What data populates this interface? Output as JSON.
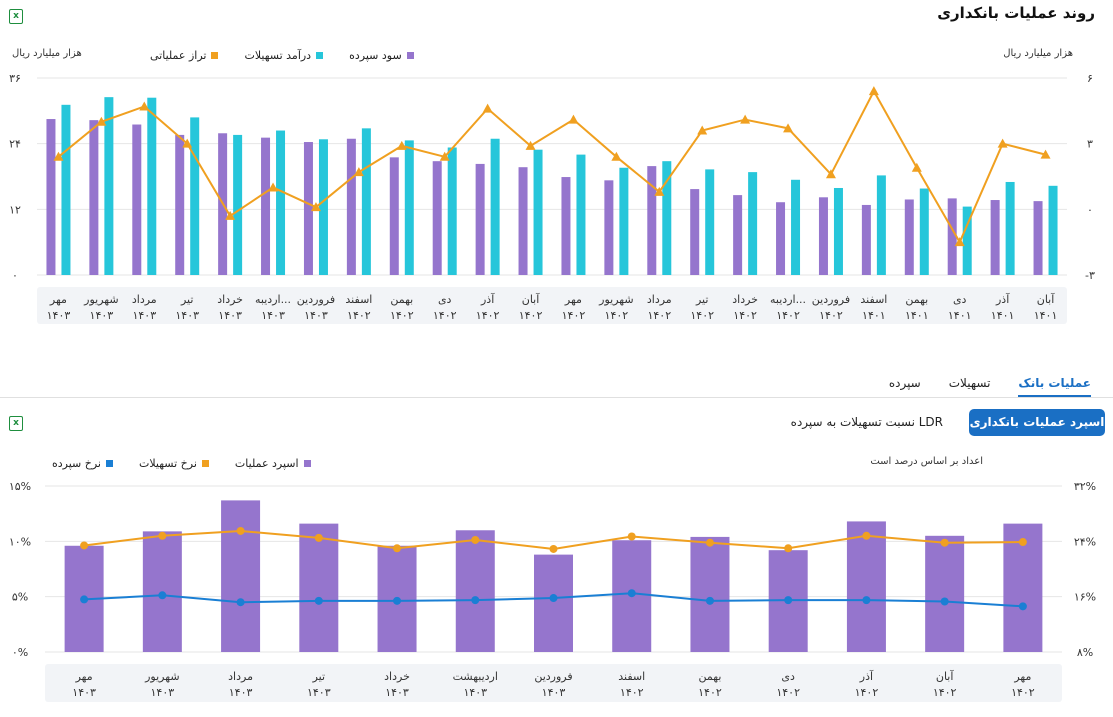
{
  "top": {
    "title": "روند عملیات بانکداری",
    "left_unit": "هزار میلیارد ریال",
    "right_unit": "هزار میلیارد ریال",
    "legend": [
      {
        "name": "سود سپرده",
        "color": "#9575cd"
      },
      {
        "name": "درآمد تسهیلات",
        "color": "#26c6da"
      },
      {
        "name": "تراز عملیاتی",
        "color": "#f0a020"
      }
    ]
  },
  "tabs": {
    "items": [
      "عملیات بانک",
      "تسهیلات",
      "سپرده"
    ],
    "active": 0
  },
  "bottom": {
    "spread_button": "اسپرد عملیات بانکداری",
    "ldr_label": "نسبت تسهیلات به سپرده LDR",
    "unit": "اعداد بر اساس درصد است",
    "legend": [
      {
        "name": "اسپرد عملیات",
        "color": "#9575cd"
      },
      {
        "name": "نرخ تسهیلات",
        "color": "#f0a020"
      },
      {
        "name": "نرخ سپرده",
        "color": "#1a7fd4"
      }
    ]
  },
  "chart_data": [
    {
      "type": "bar",
      "title": "روند عملیات بانکداری",
      "categories": [
        [
          "آبان",
          "۱۴۰۱"
        ],
        [
          "آذر",
          "۱۴۰۱"
        ],
        [
          "دی",
          "۱۴۰۱"
        ],
        [
          "بهمن",
          "۱۴۰۱"
        ],
        [
          "اسفند",
          "۱۴۰۱"
        ],
        [
          "فروردین",
          "۱۴۰۲"
        ],
        [
          "اردیبه...",
          "۱۴۰۲"
        ],
        [
          "خرداد",
          "۱۴۰۲"
        ],
        [
          "تیر",
          "۱۴۰۲"
        ],
        [
          "مرداد",
          "۱۴۰۲"
        ],
        [
          "شهریور",
          "۱۴۰۲"
        ],
        [
          "مهر",
          "۱۴۰۲"
        ],
        [
          "آبان",
          "۱۴۰۲"
        ],
        [
          "آذر",
          "۱۴۰۲"
        ],
        [
          "دی",
          "۱۴۰۲"
        ],
        [
          "بهمن",
          "۱۴۰۲"
        ],
        [
          "اسفند",
          "۱۴۰۲"
        ],
        [
          "فروردین",
          "۱۴۰۳"
        ],
        [
          "اردیبه...",
          "۱۴۰۳"
        ],
        [
          "خرداد",
          "۱۴۰۳"
        ],
        [
          "تیر",
          "۱۴۰۳"
        ],
        [
          "مرداد",
          "۱۴۰۳"
        ],
        [
          "شهریور",
          "۱۴۰۳"
        ],
        [
          "مهر",
          "۱۴۰۳"
        ]
      ],
      "left_axis": {
        "ylim": [
          0,
          36
        ],
        "ticks": [
          0,
          12,
          24,
          36
        ],
        "tick_labels": [
          "۰",
          "۱۲",
          "۲۴",
          "۳۶"
        ]
      },
      "right_axis": {
        "ylim": [
          -3,
          6
        ],
        "ticks": [
          -3,
          0,
          3,
          6
        ],
        "tick_labels": [
          "-۳",
          "۰",
          "۳",
          "۶"
        ]
      },
      "series": [
        {
          "name": "سود سپرده",
          "type": "bar",
          "axis": "left",
          "color": "#9575cd",
          "values": [
            13.5,
            13.7,
            14.0,
            13.8,
            12.8,
            14.2,
            13.3,
            14.6,
            15.7,
            19.9,
            17.3,
            17.9,
            19.7,
            20.3,
            20.8,
            21.5,
            24.9,
            24.3,
            25.1,
            25.9,
            25.6,
            27.5,
            28.3,
            28.5
          ]
        },
        {
          "name": "درآمد تسهیلات",
          "type": "bar",
          "axis": "left",
          "color": "#26c6da",
          "values": [
            16.3,
            17.0,
            12.5,
            15.8,
            18.2,
            15.9,
            17.4,
            18.8,
            19.3,
            20.8,
            19.6,
            22.0,
            22.9,
            24.9,
            23.3,
            24.6,
            26.8,
            24.8,
            26.4,
            25.6,
            28.8,
            32.4,
            32.5,
            31.1
          ]
        },
        {
          "name": "تراز عملیاتی",
          "type": "line",
          "axis": "right",
          "color": "#f0a020",
          "values": [
            2.5,
            3.0,
            -1.5,
            1.9,
            5.4,
            1.6,
            3.7,
            4.1,
            3.6,
            0.8,
            2.4,
            4.1,
            2.9,
            4.6,
            2.4,
            2.9,
            1.7,
            0.1,
            1.0,
            -0.3,
            3.0,
            4.7,
            4.0,
            2.4
          ]
        }
      ]
    },
    {
      "type": "bar",
      "title": "اسپرد عملیات بانکداری",
      "categories": [
        [
          "مهر",
          "۱۴۰۲"
        ],
        [
          "آبان",
          "۱۴۰۲"
        ],
        [
          "آذر",
          "۱۴۰۲"
        ],
        [
          "دی",
          "۱۴۰۲"
        ],
        [
          "بهمن",
          "۱۴۰۲"
        ],
        [
          "اسفند",
          "۱۴۰۲"
        ],
        [
          "فروردین",
          "۱۴۰۳"
        ],
        [
          "اردیبهشت",
          "۱۴۰۳"
        ],
        [
          "خرداد",
          "۱۴۰۳"
        ],
        [
          "تیر",
          "۱۴۰۳"
        ],
        [
          "مرداد",
          "۱۴۰۳"
        ],
        [
          "شهریور",
          "۱۴۰۳"
        ],
        [
          "مهر",
          "۱۴۰۳"
        ]
      ],
      "left_axis": {
        "ylim": [
          0,
          15
        ],
        "ticks": [
          0,
          5,
          10,
          15
        ],
        "tick_labels": [
          "۰%",
          "۵%",
          "۱۰%",
          "۱۵%"
        ]
      },
      "right_axis": {
        "ylim": [
          8,
          32
        ],
        "ticks": [
          8,
          16,
          24,
          32
        ],
        "tick_labels": [
          "۸%",
          "۱۶%",
          "۲۴%",
          "۳۲%"
        ]
      },
      "series": [
        {
          "name": "اسپرد عملیات",
          "type": "bar",
          "axis": "left",
          "color": "#9575cd",
          "values": [
            11.6,
            10.5,
            11.8,
            9.2,
            10.4,
            10.1,
            8.8,
            11.0,
            9.6,
            11.6,
            13.7,
            10.9,
            9.6
          ]
        },
        {
          "name": "نرخ تسهیلات",
          "type": "line",
          "axis": "right",
          "color": "#f0a020",
          "values": [
            23.9,
            23.8,
            24.8,
            23.0,
            23.8,
            24.7,
            22.9,
            24.2,
            23.0,
            24.5,
            25.5,
            24.8,
            23.4
          ]
        },
        {
          "name": "نرخ سپرده",
          "type": "line",
          "axis": "right",
          "color": "#1a7fd4",
          "values": [
            14.6,
            15.3,
            15.5,
            15.5,
            15.4,
            16.5,
            15.8,
            15.5,
            15.4,
            15.4,
            15.2,
            16.2,
            15.6
          ]
        }
      ]
    }
  ]
}
